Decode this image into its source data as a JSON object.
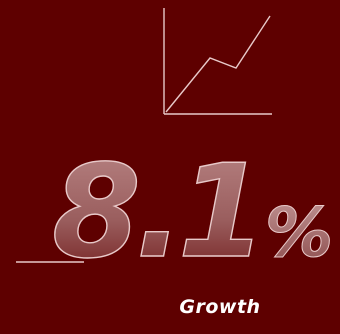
{
  "stat": {
    "value": "8.1",
    "unit": "%",
    "label": "Growth"
  },
  "icon": "trend-up-chart-icon",
  "colors": {
    "background": "#5e0000",
    "line": "#e8c9c9",
    "text": "#ffffff",
    "figure_fill_top": "#b98585",
    "figure_fill_bottom": "#6e1515"
  }
}
